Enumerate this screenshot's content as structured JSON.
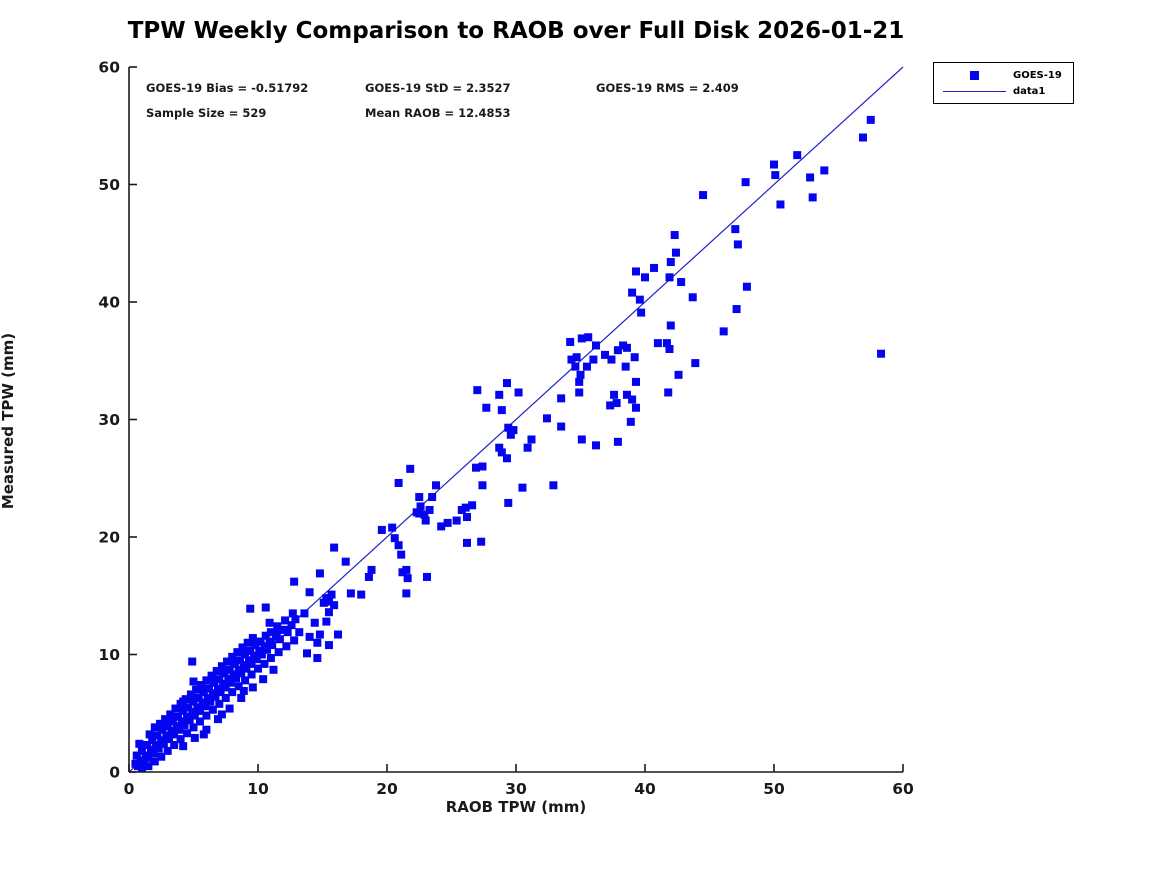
{
  "title": "TPW Weekly Comparison to RAOB over Full Disk 2026-01-21",
  "stats": {
    "bias": "GOES-19 Bias = -0.51792",
    "std": "GOES-19 StD = 2.3527",
    "rms": "GOES-19 RMS = 2.409",
    "sample": "Sample Size = 529",
    "mean_raob": "Mean RAOB = 12.4853"
  },
  "legend": {
    "items": [
      {
        "label": "GOES-19",
        "marker": "square"
      },
      {
        "label": "data1",
        "marker": "line"
      }
    ]
  },
  "colors": {
    "marker": "#0404ee",
    "line": "#2020c8",
    "axis": "#1a1a1a",
    "background": "#ffffff"
  },
  "chart_data": {
    "type": "scatter",
    "title": "TPW Weekly Comparison to RAOB over Full Disk 2026-01-21",
    "xlabel": "RAOB TPW (mm)",
    "ylabel": "Measured TPW (mm)",
    "xlim": [
      0,
      60
    ],
    "ylim": [
      0,
      60
    ],
    "x_ticks": [
      0,
      10,
      20,
      30,
      40,
      50,
      60
    ],
    "y_ticks": [
      0,
      10,
      20,
      30,
      40,
      50,
      60
    ],
    "grid": false,
    "legend_position": "top-right",
    "stats": {
      "bias": -0.51792,
      "std": 2.3527,
      "rms": 2.409,
      "sample_size": 529,
      "mean_raob": 12.4853
    },
    "reference_line": {
      "name": "data1",
      "from": [
        0,
        0
      ],
      "to": [
        60,
        60
      ]
    },
    "series": [
      {
        "name": "GOES-19",
        "marker": "square",
        "points": [
          [
            0.5,
            0.7
          ],
          [
            0.7,
            0.5
          ],
          [
            0.9,
            1.0
          ],
          [
            1.1,
            0.8
          ],
          [
            1.3,
            1.4
          ],
          [
            1.5,
            1.2
          ],
          [
            1.7,
            1.9
          ],
          [
            1.9,
            1.6
          ],
          [
            2.1,
            2.3
          ],
          [
            2.3,
            2.0
          ],
          [
            2.5,
            2.7
          ],
          [
            2.7,
            2.4
          ],
          [
            2.9,
            3.1
          ],
          [
            3.1,
            2.8
          ],
          [
            3.3,
            3.5
          ],
          [
            3.5,
            3.2
          ],
          [
            3.7,
            3.9
          ],
          [
            3.9,
            3.6
          ],
          [
            4.1,
            4.3
          ],
          [
            4.3,
            4.0
          ],
          [
            4.5,
            4.7
          ],
          [
            4.7,
            4.4
          ],
          [
            4.9,
            5.1
          ],
          [
            5.1,
            4.8
          ],
          [
            5.3,
            5.5
          ],
          [
            5.5,
            5.2
          ],
          [
            5.7,
            5.9
          ],
          [
            5.9,
            5.6
          ],
          [
            6.1,
            6.3
          ],
          [
            6.3,
            6.0
          ],
          [
            6.5,
            6.7
          ],
          [
            6.7,
            6.4
          ],
          [
            6.9,
            7.1
          ],
          [
            7.1,
            6.8
          ],
          [
            7.3,
            7.5
          ],
          [
            7.5,
            7.2
          ],
          [
            7.7,
            7.9
          ],
          [
            7.9,
            7.6
          ],
          [
            8.1,
            8.3
          ],
          [
            8.3,
            8.0
          ],
          [
            8.5,
            8.7
          ],
          [
            8.7,
            8.4
          ],
          [
            8.9,
            9.1
          ],
          [
            9.1,
            8.8
          ],
          [
            9.3,
            9.5
          ],
          [
            9.5,
            9.2
          ],
          [
            9.7,
            9.9
          ],
          [
            9.9,
            9.6
          ],
          [
            10.1,
            10.3
          ],
          [
            10.3,
            10.0
          ],
          [
            10.5,
            10.7
          ],
          [
            10.7,
            10.4
          ],
          [
            10.9,
            11.1
          ],
          [
            11.1,
            10.8
          ],
          [
            11.4,
            11.5
          ],
          [
            11.7,
            11.3
          ],
          [
            12.0,
            12.1
          ],
          [
            12.3,
            11.9
          ],
          [
            12.6,
            12.5
          ],
          [
            12.9,
            13.0
          ],
          [
            0.6,
            1.4
          ],
          [
            1.0,
            1.8
          ],
          [
            1.4,
            2.3
          ],
          [
            1.8,
            2.7
          ],
          [
            2.2,
            3.1
          ],
          [
            2.6,
            3.6
          ],
          [
            3.0,
            3.9
          ],
          [
            3.4,
            4.3
          ],
          [
            3.8,
            4.7
          ],
          [
            4.2,
            5.2
          ],
          [
            4.6,
            5.5
          ],
          [
            5.0,
            6.0
          ],
          [
            5.4,
            6.3
          ],
          [
            5.8,
            6.8
          ],
          [
            6.2,
            7.1
          ],
          [
            6.6,
            7.6
          ],
          [
            7.0,
            7.9
          ],
          [
            7.4,
            8.4
          ],
          [
            7.8,
            8.7
          ],
          [
            8.2,
            9.2
          ],
          [
            8.6,
            9.5
          ],
          [
            9.0,
            10.0
          ],
          [
            9.4,
            10.3
          ],
          [
            9.8,
            10.8
          ],
          [
            10.2,
            11.1
          ],
          [
            10.6,
            11.6
          ],
          [
            11.0,
            11.9
          ],
          [
            11.5,
            12.4
          ],
          [
            12.1,
            12.9
          ],
          [
            12.7,
            13.5
          ],
          [
            0.8,
            2.4
          ],
          [
            1.6,
            3.2
          ],
          [
            2.4,
            4.1
          ],
          [
            3.2,
            4.9
          ],
          [
            4.0,
            5.8
          ],
          [
            4.8,
            6.6
          ],
          [
            5.6,
            7.4
          ],
          [
            6.4,
            8.2
          ],
          [
            7.2,
            9.0
          ],
          [
            8.0,
            9.8
          ],
          [
            8.8,
            10.6
          ],
          [
            9.6,
            11.4
          ],
          [
            2.0,
            3.8
          ],
          [
            2.8,
            4.5
          ],
          [
            3.6,
            5.4
          ],
          [
            4.4,
            6.2
          ],
          [
            5.2,
            7.0
          ],
          [
            6.0,
            7.8
          ],
          [
            6.8,
            8.6
          ],
          [
            7.6,
            9.4
          ],
          [
            8.4,
            10.2
          ],
          [
            9.2,
            11.0
          ],
          [
            1.0,
            0.3
          ],
          [
            1.5,
            0.5
          ],
          [
            2.0,
            0.9
          ],
          [
            2.5,
            1.3
          ],
          [
            3.0,
            1.8
          ],
          [
            3.5,
            2.3
          ],
          [
            4.0,
            2.8
          ],
          [
            4.5,
            3.3
          ],
          [
            5.0,
            3.8
          ],
          [
            5.5,
            4.3
          ],
          [
            6.0,
            4.8
          ],
          [
            6.5,
            5.3
          ],
          [
            7.0,
            5.8
          ],
          [
            7.5,
            6.3
          ],
          [
            8.0,
            6.8
          ],
          [
            8.5,
            7.3
          ],
          [
            9.0,
            7.8
          ],
          [
            9.5,
            8.3
          ],
          [
            10.0,
            8.8
          ],
          [
            10.5,
            9.2
          ],
          [
            11.0,
            9.7
          ],
          [
            11.6,
            10.2
          ],
          [
            12.2,
            10.7
          ],
          [
            12.8,
            11.2
          ],
          [
            4.2,
            2.2
          ],
          [
            5.1,
            2.9
          ],
          [
            6.0,
            3.6
          ],
          [
            6.9,
            4.5
          ],
          [
            7.8,
            5.4
          ],
          [
            8.7,
            6.3
          ],
          [
            9.6,
            7.2
          ],
          [
            10.4,
            7.9
          ],
          [
            11.2,
            8.7
          ],
          [
            5.8,
            3.2
          ],
          [
            7.2,
            4.9
          ],
          [
            8.9,
            6.9
          ],
          [
            4.9,
            9.4
          ],
          [
            5.0,
            7.7
          ],
          [
            4.2,
            6.0
          ],
          [
            9.4,
            13.9
          ],
          [
            10.6,
            14.0
          ],
          [
            10.9,
            12.7
          ],
          [
            11.5,
            12.1
          ],
          [
            12.8,
            16.2
          ],
          [
            13.2,
            11.9
          ],
          [
            13.6,
            13.5
          ],
          [
            13.8,
            10.1
          ],
          [
            14.0,
            11.5
          ],
          [
            14.0,
            15.3
          ],
          [
            14.4,
            12.7
          ],
          [
            14.6,
            11.0
          ],
          [
            14.6,
            9.7
          ],
          [
            14.8,
            11.7
          ],
          [
            14.8,
            16.9
          ],
          [
            15.1,
            14.4
          ],
          [
            15.3,
            14.8
          ],
          [
            15.3,
            12.8
          ],
          [
            15.5,
            14.5
          ],
          [
            15.5,
            13.6
          ],
          [
            15.5,
            10.8
          ],
          [
            15.7,
            15.1
          ],
          [
            15.9,
            14.2
          ],
          [
            15.9,
            19.1
          ],
          [
            16.2,
            11.7
          ],
          [
            16.8,
            17.9
          ],
          [
            17.2,
            15.2
          ],
          [
            18.0,
            15.1
          ],
          [
            18.6,
            16.6
          ],
          [
            18.8,
            17.2
          ],
          [
            19.6,
            20.6
          ],
          [
            20.4,
            20.8
          ],
          [
            20.6,
            19.9
          ],
          [
            20.9,
            19.3
          ],
          [
            20.9,
            24.6
          ],
          [
            21.1,
            18.5
          ],
          [
            21.2,
            17.0
          ],
          [
            21.5,
            17.2
          ],
          [
            21.6,
            16.5
          ],
          [
            21.5,
            15.2
          ],
          [
            21.8,
            25.8
          ],
          [
            22.3,
            22.1
          ],
          [
            22.5,
            22.0
          ],
          [
            22.5,
            23.4
          ],
          [
            22.6,
            22.6
          ],
          [
            22.9,
            21.9
          ],
          [
            23.0,
            21.4
          ],
          [
            23.1,
            16.6
          ],
          [
            23.3,
            22.3
          ],
          [
            23.5,
            23.4
          ],
          [
            23.8,
            24.4
          ],
          [
            24.2,
            20.9
          ],
          [
            24.7,
            21.2
          ],
          [
            25.4,
            21.4
          ],
          [
            25.8,
            22.3
          ],
          [
            26.1,
            22.5
          ],
          [
            26.2,
            21.7
          ],
          [
            26.6,
            22.7
          ],
          [
            26.2,
            19.5
          ],
          [
            26.9,
            25.9
          ],
          [
            27.3,
            19.6
          ],
          [
            27.4,
            24.4
          ],
          [
            27.4,
            26.0
          ],
          [
            27.0,
            32.5
          ],
          [
            27.7,
            31.0
          ],
          [
            28.7,
            32.1
          ],
          [
            28.7,
            27.6
          ],
          [
            28.9,
            30.8
          ],
          [
            28.9,
            27.2
          ],
          [
            29.3,
            33.1
          ],
          [
            29.3,
            26.7
          ],
          [
            29.4,
            29.3
          ],
          [
            29.6,
            28.7
          ],
          [
            29.8,
            29.1
          ],
          [
            29.4,
            22.9
          ],
          [
            30.2,
            32.3
          ],
          [
            30.5,
            24.2
          ],
          [
            30.9,
            27.6
          ],
          [
            31.2,
            28.3
          ],
          [
            32.4,
            30.1
          ],
          [
            32.9,
            24.4
          ],
          [
            33.5,
            31.8
          ],
          [
            33.5,
            29.4
          ],
          [
            34.2,
            36.6
          ],
          [
            34.3,
            35.1
          ],
          [
            34.6,
            34.5
          ],
          [
            34.9,
            32.3
          ],
          [
            34.7,
            35.3
          ],
          [
            34.9,
            33.2
          ],
          [
            35.0,
            33.8
          ],
          [
            35.1,
            36.9
          ],
          [
            35.1,
            28.3
          ],
          [
            35.5,
            34.5
          ],
          [
            35.6,
            37.0
          ],
          [
            36.0,
            35.1
          ],
          [
            36.2,
            36.3
          ],
          [
            36.2,
            27.8
          ],
          [
            36.9,
            35.5
          ],
          [
            37.3,
            31.2
          ],
          [
            37.4,
            35.1
          ],
          [
            37.6,
            32.1
          ],
          [
            37.8,
            31.4
          ],
          [
            37.9,
            35.9
          ],
          [
            37.9,
            28.1
          ],
          [
            38.6,
            36.1
          ],
          [
            38.6,
            32.1
          ],
          [
            38.9,
            29.8
          ],
          [
            39.0,
            31.7
          ],
          [
            39.2,
            35.3
          ],
          [
            39.3,
            31.0
          ],
          [
            39.3,
            42.6
          ],
          [
            39.0,
            40.8
          ],
          [
            39.6,
            40.2
          ],
          [
            39.7,
            39.1
          ],
          [
            38.3,
            36.3
          ],
          [
            38.5,
            34.5
          ],
          [
            39.3,
            33.2
          ],
          [
            40.0,
            42.1
          ],
          [
            40.7,
            42.9
          ],
          [
            41.0,
            36.5
          ],
          [
            41.7,
            36.5
          ],
          [
            41.9,
            42.1
          ],
          [
            41.9,
            36.0
          ],
          [
            41.8,
            32.3
          ],
          [
            42.0,
            43.4
          ],
          [
            42.0,
            38.0
          ],
          [
            42.3,
            45.7
          ],
          [
            42.4,
            44.2
          ],
          [
            42.6,
            33.8
          ],
          [
            42.8,
            41.7
          ],
          [
            43.7,
            40.4
          ],
          [
            43.9,
            34.8
          ],
          [
            44.5,
            49.1
          ],
          [
            46.1,
            37.5
          ],
          [
            47.0,
            46.2
          ],
          [
            47.2,
            44.9
          ],
          [
            47.8,
            50.2
          ],
          [
            47.9,
            41.3
          ],
          [
            47.1,
            39.4
          ],
          [
            50.0,
            51.7
          ],
          [
            50.1,
            50.8
          ],
          [
            50.5,
            48.3
          ],
          [
            51.8,
            52.5
          ],
          [
            52.8,
            50.6
          ],
          [
            53.0,
            48.9
          ],
          [
            53.9,
            51.2
          ],
          [
            56.9,
            54.0
          ],
          [
            57.5,
            55.5
          ],
          [
            58.3,
            35.6
          ]
        ]
      }
    ]
  }
}
